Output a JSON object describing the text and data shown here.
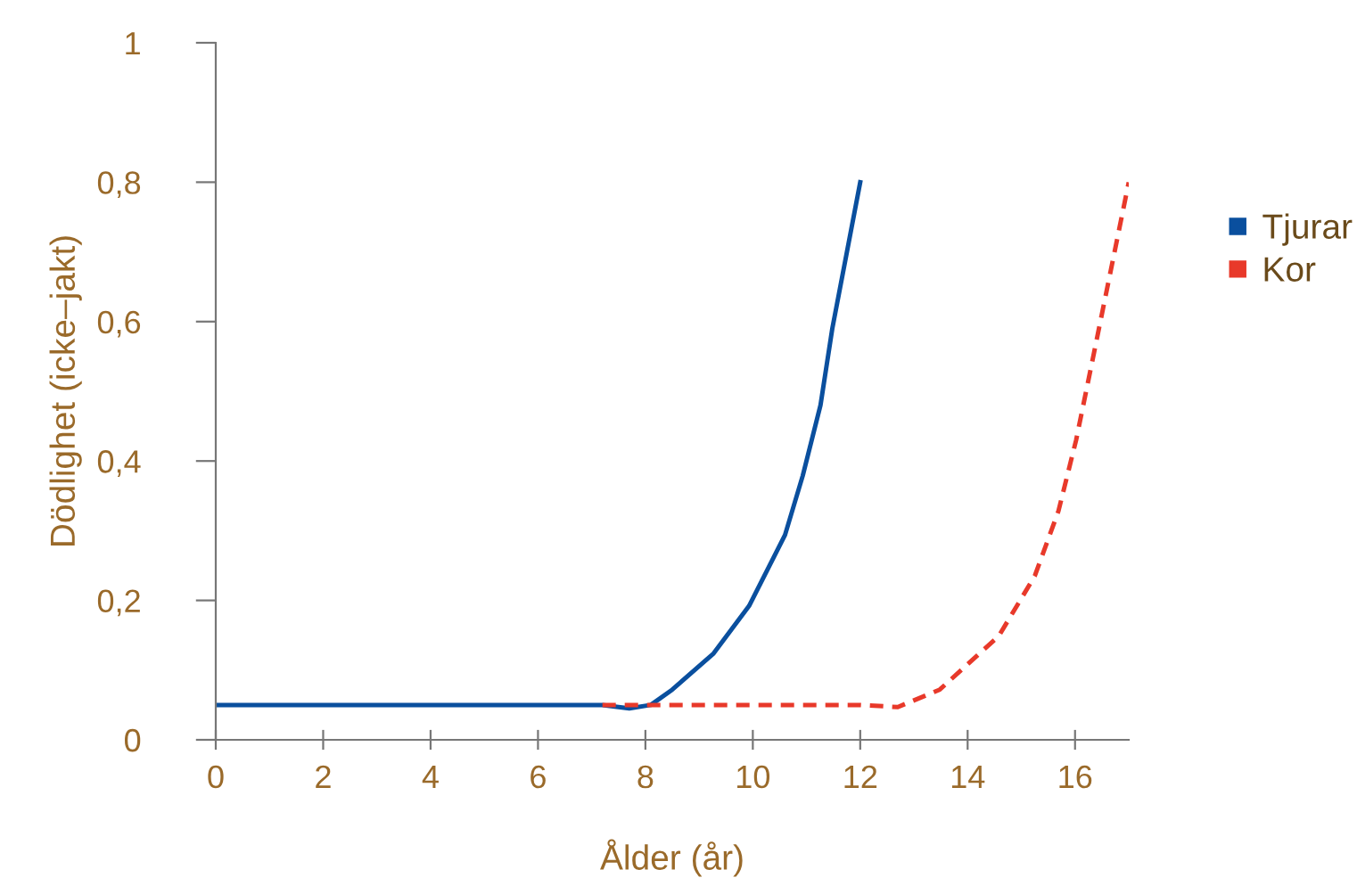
{
  "chart_data": {
    "type": "line",
    "xlabel": "Ålder (år)",
    "ylabel": "Dödlighet (icke–jakt)",
    "xlim": [
      0,
      17
    ],
    "xticks": [
      0,
      2,
      4,
      6,
      8,
      10,
      12,
      14,
      16
    ],
    "ylim": [
      0,
      1
    ],
    "yticks": [
      0,
      {
        "value": 0.2,
        "label": "0,2"
      },
      {
        "value": 0.4,
        "label": "0,4"
      },
      {
        "value": 0.6,
        "label": "0,6"
      },
      {
        "value": 0.8,
        "label": "0,8"
      },
      1
    ],
    "grid": false,
    "legend": "right",
    "series": [
      {
        "name": "Tjurar",
        "color": "#0a4f9e",
        "line_style": "solid",
        "x": [
          0,
          2,
          4,
          6,
          7.2,
          7.7,
          8.1,
          8.5,
          9.27,
          9.93,
          10.6,
          10.93,
          11.26,
          11.48,
          12.0
        ],
        "values": [
          0.05,
          0.05,
          0.05,
          0.05,
          0.05,
          0.045,
          0.05,
          0.072,
          0.124,
          0.192,
          0.294,
          0.379,
          0.48,
          0.59,
          0.8
        ]
      },
      {
        "name": "Kor",
        "color": "#e8392a",
        "line_style": "dashed",
        "x": [
          7.2,
          8,
          10,
          12,
          12.7,
          13.48,
          14.58,
          15.25,
          15.69,
          16.02,
          16.36,
          17.0
        ],
        "values": [
          0.05,
          0.05,
          0.05,
          0.05,
          0.047,
          0.072,
          0.149,
          0.235,
          0.328,
          0.43,
          0.558,
          0.8
        ]
      }
    ]
  }
}
